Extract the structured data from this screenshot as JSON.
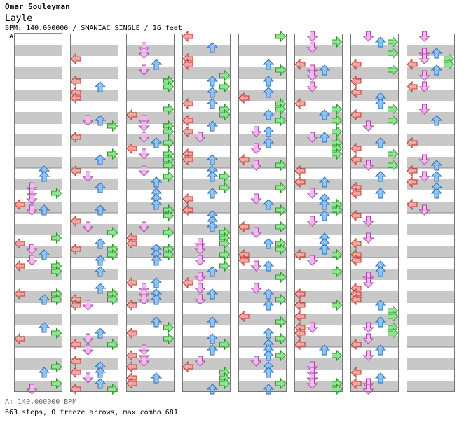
{
  "header": {
    "artist": "Omar Souleyman",
    "title": "Layle",
    "info": "BPM: 140.000000 / SMANIAC SINGLE / 16 feet",
    "bpm_marker": "A"
  },
  "footer": {
    "bpm_line": "A: 140.000000 BPM",
    "stats": "663 steps, 0 freeze arrows, max combo 681"
  },
  "colors": {
    "stripe": "#c8c8c8",
    "border": "#777777",
    "marker": "#5b9bd5",
    "left_arrow": "#f2a6a6",
    "down_arrow": "#f4b8f0",
    "up_arrow": "#8fc4f5",
    "right_arrow": "#8fe58f"
  },
  "chart_data": {
    "type": "step-chart",
    "columns": 8,
    "measures_per_column": 8,
    "lanes": [
      "left",
      "down",
      "up",
      "right"
    ],
    "total_steps": 663,
    "freeze_arrows": 0,
    "max_combo": 681
  }
}
